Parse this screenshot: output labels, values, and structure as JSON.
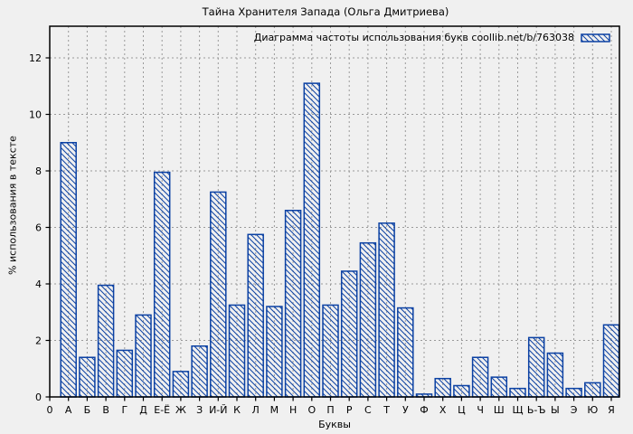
{
  "title": "Тайна Хранителя Запада (Ольга Дмитриева)",
  "legend": {
    "label": "Диаграмма частоты использования букв coollib.net/b/763038",
    "swatch_icon": "hatched-bar-swatch"
  },
  "axes": {
    "x_label": "Буквы",
    "y_label": "% использования в тексте",
    "x_origin_label": "0",
    "y_ticks": [
      0,
      2,
      4,
      6,
      8,
      10,
      12
    ]
  },
  "colors": {
    "bar": "#0b41a3",
    "grid": "#9a9a9a",
    "axis": "#000000",
    "background": "#f0f0f0"
  },
  "chart_data": {
    "type": "bar",
    "title": "Тайна Хранителя Запада (Ольга Дмитриева)",
    "series_label": "Диаграмма частоты использования букв coollib.net/b/763038",
    "categories": [
      "А",
      "Б",
      "В",
      "Г",
      "Д",
      "Е-Ё",
      "Ж",
      "З",
      "И-Й",
      "К",
      "Л",
      "М",
      "Н",
      "О",
      "П",
      "Р",
      "С",
      "Т",
      "У",
      "Ф",
      "Х",
      "Ц",
      "Ч",
      "Ш",
      "Щ",
      "Ь-Ъ",
      "Ы",
      "Э",
      "Ю",
      "Я"
    ],
    "values": [
      9.0,
      1.4,
      3.95,
      1.65,
      2.9,
      7.95,
      0.9,
      1.8,
      7.25,
      3.25,
      5.75,
      3.2,
      6.6,
      11.1,
      3.25,
      4.45,
      5.45,
      6.15,
      3.15,
      0.1,
      0.65,
      0.4,
      1.4,
      0.7,
      0.3,
      2.1,
      1.55,
      0.3,
      0.5,
      2.55
    ],
    "xlabel": "Буквы",
    "ylabel": "% использования в тексте",
    "ylim": [
      0,
      13.12
    ],
    "grid": true,
    "legend_position": "top-right",
    "bar_style": "hatched"
  }
}
